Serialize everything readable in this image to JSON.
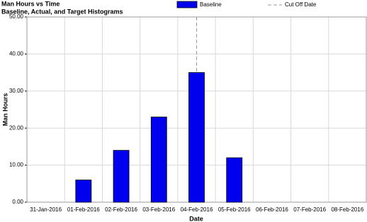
{
  "chart_data": {
    "type": "bar",
    "title": "Man Hours vs Time",
    "subtitle": "Baseline, Actual, and Target Histograms",
    "x_label": "Date",
    "y_label": "Man Hours",
    "categories": [
      "31-Jan-2016",
      "01-Feb-2016",
      "02-Feb-2016",
      "03-Feb-2016",
      "04-Feb-2016",
      "05-Feb-2016",
      "06-Feb-2016",
      "07-Feb-2016",
      "08-Feb-2016"
    ],
    "series": [
      {
        "name": "Baseline",
        "color": "#0000ee",
        "values": [
          0,
          6,
          14,
          23,
          35,
          12,
          0,
          0,
          0
        ]
      }
    ],
    "cutoff": {
      "name": "Cut Off Date",
      "category": "04-Feb-2016",
      "color": "#999999"
    },
    "ylim": [
      0,
      50
    ],
    "yticks": [
      {
        "value": 0,
        "label": "0.00"
      },
      {
        "value": 10,
        "label": "10.00"
      },
      {
        "value": 20,
        "label": "20.00"
      },
      {
        "value": 30,
        "label": "30.00"
      },
      {
        "value": 40,
        "label": "40.00"
      },
      {
        "value": 50,
        "label": "50.00"
      }
    ],
    "grid": true
  }
}
